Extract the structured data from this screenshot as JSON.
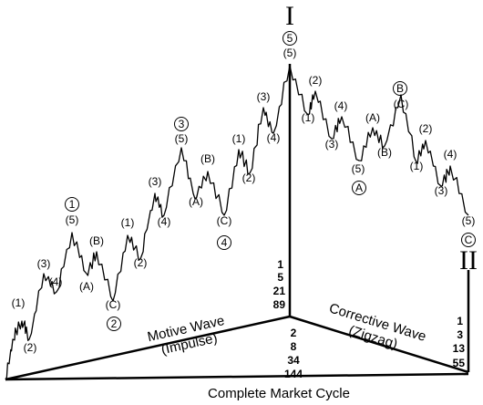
{
  "diagram": {
    "peak_label": "I",
    "end_label": "II",
    "bottom_title": "Complete Market Cycle",
    "motive_title": "Motive Wave",
    "motive_sub": "(Impulse)",
    "corrective_title": "Corrective Wave",
    "corrective_sub": "(Zigzag)",
    "counts_upper": [
      "1",
      "5",
      "21",
      "89"
    ],
    "counts_center": [
      "2",
      "8",
      "34",
      "144"
    ],
    "counts_right": [
      "1",
      "3",
      "13",
      "55"
    ],
    "circled_labels": [
      "1",
      "2",
      "3",
      "4",
      "5",
      "A",
      "B",
      "C"
    ],
    "wave_labels": [
      "(1)",
      "(2)",
      "(3)",
      "(4)",
      "(5)",
      "(A)",
      "(B)",
      "(C)"
    ]
  }
}
